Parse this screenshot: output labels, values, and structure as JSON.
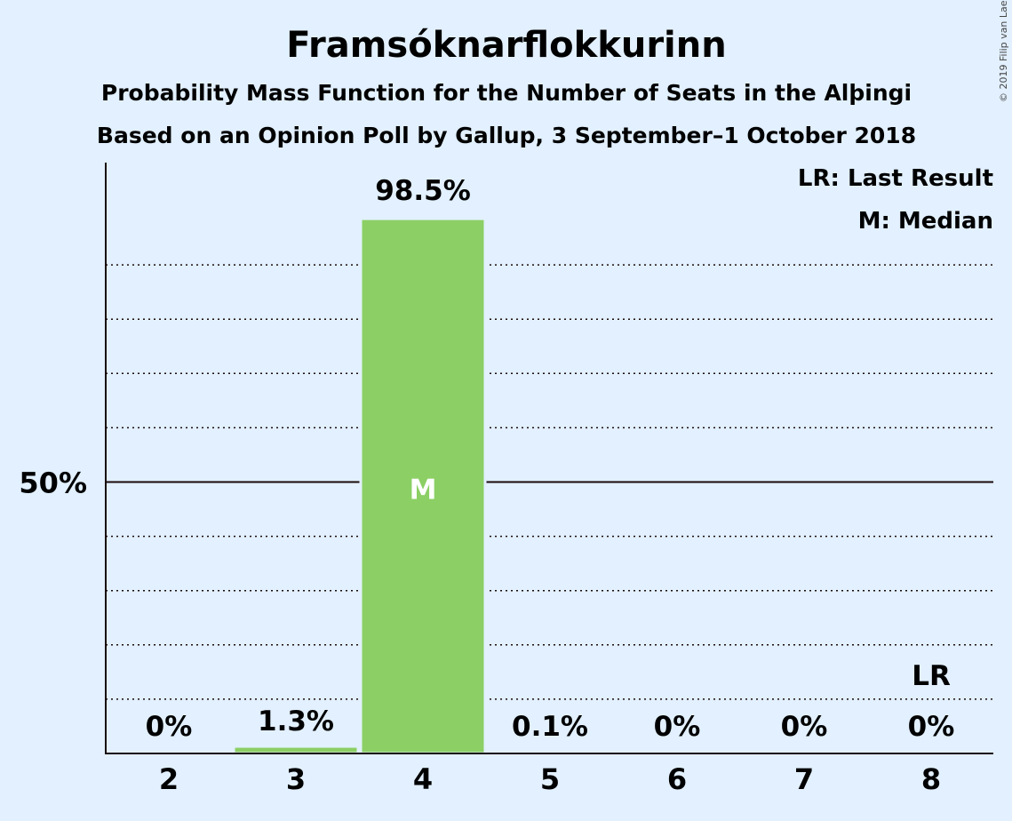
{
  "title": "Framsóknarflokkurinn",
  "subtitle1": "Probability Mass Function for the Number of Seats in the Alþingi",
  "subtitle2": "Based on an Opinion Poll by Gallup, 3 September–1 October 2018",
  "copyright": "© 2019 Filip van Laenen",
  "legend": {
    "last_result": "LR: Last Result",
    "median": "M: Median"
  },
  "colors": {
    "bar": "#8ccf65",
    "background": "#e2f0ff",
    "text": "#1a0a0a"
  },
  "chart_data": {
    "type": "bar",
    "categories": [
      "2",
      "3",
      "4",
      "5",
      "6",
      "7",
      "8"
    ],
    "values": [
      0,
      1.3,
      98.5,
      0.1,
      0,
      0,
      0
    ],
    "value_labels": [
      "0%",
      "1.3%",
      "98.5%",
      "0.1%",
      "0%",
      "0%",
      "0%"
    ],
    "ylim": [
      0,
      109
    ],
    "ytick_label": "50%",
    "ytick_value": 50,
    "gridlines": [
      10,
      20,
      30,
      40,
      60,
      70,
      80,
      90
    ],
    "median_category": "4",
    "median_marker": "M",
    "last_result_category": "8",
    "last_result_marker": "LR"
  }
}
